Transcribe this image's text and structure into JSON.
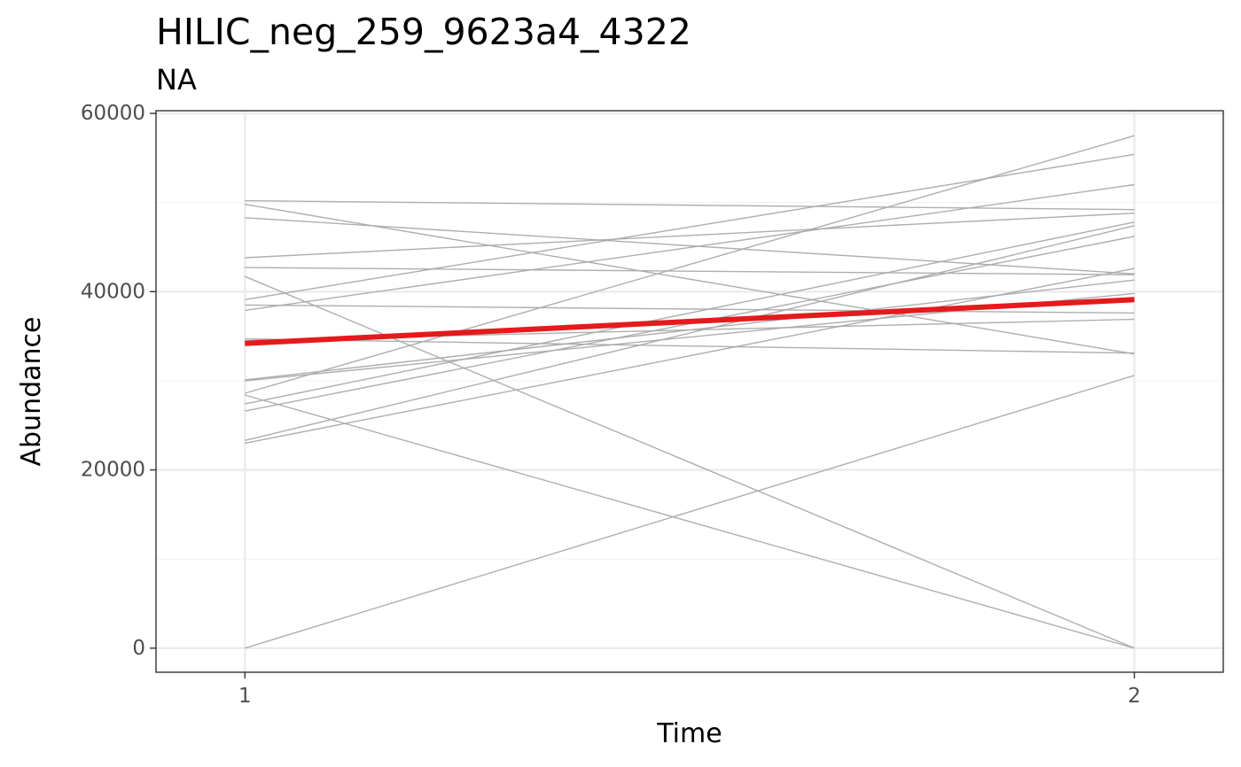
{
  "header": {
    "title": "HILIC_neg_259_9623a4_4322",
    "subtitle": "NA"
  },
  "chart_data": {
    "type": "line",
    "title": "HILIC_neg_259_9623a4_4322",
    "subtitle": "NA",
    "xlabel": "Time",
    "ylabel": "Abundance",
    "x": [
      1,
      2
    ],
    "x_ticks": [
      "1",
      "2"
    ],
    "y_ticks": [
      0,
      20000,
      40000,
      60000
    ],
    "y_tick_labels": [
      "0",
      "20000",
      "40000",
      "60000"
    ],
    "xlim": [
      0.9,
      2.1
    ],
    "ylim": [
      -2700,
      60300
    ],
    "grid": true,
    "colors": {
      "individual": "#aaaaaa",
      "mean": "#e41a1c",
      "panel_border": "#333333",
      "grid_major": "#ebebeb",
      "grid_minor": "#f3f3f3"
    },
    "series": [
      {
        "values": [
          50200,
          49200
        ]
      },
      {
        "values": [
          49800,
          33000
        ]
      },
      {
        "values": [
          48300,
          42000
        ]
      },
      {
        "values": [
          43800,
          48800
        ]
      },
      {
        "values": [
          42700,
          41900
        ]
      },
      {
        "values": [
          41700,
          0
        ]
      },
      {
        "values": [
          39100,
          55400
        ]
      },
      {
        "values": [
          37900,
          52000
        ]
      },
      {
        "values": [
          38500,
          37600
        ]
      },
      {
        "values": [
          34700,
          33100
        ]
      },
      {
        "values": [
          30100,
          41300
        ]
      },
      {
        "values": [
          28600,
          57500
        ]
      },
      {
        "values": [
          28400,
          0
        ]
      },
      {
        "values": [
          27400,
          47800
        ]
      },
      {
        "values": [
          26600,
          46200
        ]
      },
      {
        "values": [
          23300,
          47400
        ]
      },
      {
        "values": [
          23000,
          42600
        ]
      },
      {
        "values": [
          0,
          30600
        ]
      },
      {
        "values": [
          34500,
          36900
        ]
      },
      {
        "values": [
          30000,
          39800
        ]
      }
    ],
    "mean_series": {
      "values": [
        34200,
        39100
      ]
    }
  }
}
